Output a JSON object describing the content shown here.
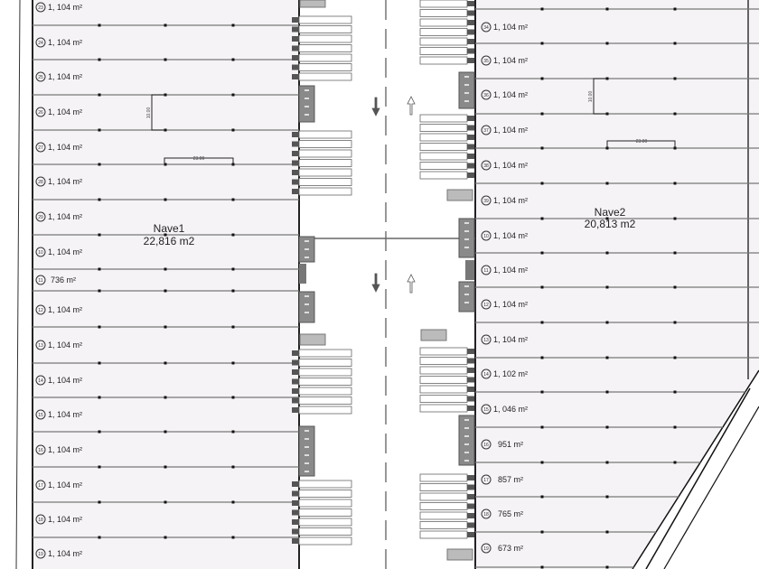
{
  "colors": {
    "lot_fill": "#f6f3f6",
    "line": "#777777",
    "stall_dark": "#8a8a8a",
    "stall_light": "#ffffff",
    "road": "#ffffff"
  },
  "nave1": {
    "name": "Nave1",
    "area": "22,816 m2",
    "lots": [
      {
        "num": "23",
        "area": "1, 104 m²"
      },
      {
        "num": "24",
        "area": "1, 104 m²"
      },
      {
        "num": "25",
        "area": "1, 104 m²"
      },
      {
        "num": "26",
        "area": "1, 104 m²"
      },
      {
        "num": "27",
        "area": "1, 104 m²"
      },
      {
        "num": "28",
        "area": "1, 104 m²"
      },
      {
        "num": "29",
        "area": "1, 104 m²"
      },
      {
        "num": "10",
        "area": "1, 104 m²"
      },
      {
        "num": "11",
        "area": "736 m²"
      },
      {
        "num": "12",
        "area": "1, 104 m²"
      },
      {
        "num": "13",
        "area": "1, 104 m²"
      },
      {
        "num": "14",
        "area": "1, 104 m²"
      },
      {
        "num": "15",
        "area": "1, 104 m²"
      },
      {
        "num": "16",
        "area": "1, 104 m²"
      },
      {
        "num": "17",
        "area": "1, 104 m²"
      },
      {
        "num": "18",
        "area": "1, 104 m²"
      },
      {
        "num": "19",
        "area": "1, 104 m²"
      }
    ]
  },
  "nave2": {
    "name": "Nave2",
    "area": "20,813 m2",
    "lots": [
      {
        "num": "34",
        "area": "1, 104 m²"
      },
      {
        "num": "35",
        "area": "1, 104 m²"
      },
      {
        "num": "36",
        "area": "1, 104 m²"
      },
      {
        "num": "37",
        "area": "1, 104 m²"
      },
      {
        "num": "38",
        "area": "1, 104 m²"
      },
      {
        "num": "39",
        "area": "1, 104 m²"
      },
      {
        "num": "10",
        "area": "1, 104 m²"
      },
      {
        "num": "11",
        "area": "1, 104 m²"
      },
      {
        "num": "12",
        "area": "1, 104 m²"
      },
      {
        "num": "13",
        "area": "1, 104 m²"
      },
      {
        "num": "14",
        "area": "1, 102 m²"
      },
      {
        "num": "15",
        "area": "1, 046 m²"
      },
      {
        "num": "16",
        "area": "951 m²"
      },
      {
        "num": "17",
        "area": "857 m²"
      },
      {
        "num": "18",
        "area": "765 m²"
      },
      {
        "num": "19",
        "area": "673 m²"
      }
    ]
  },
  "dimensions": {
    "width": "23.00",
    "depth": "10.00"
  },
  "arrows": [
    "down",
    "up",
    "down",
    "up"
  ]
}
